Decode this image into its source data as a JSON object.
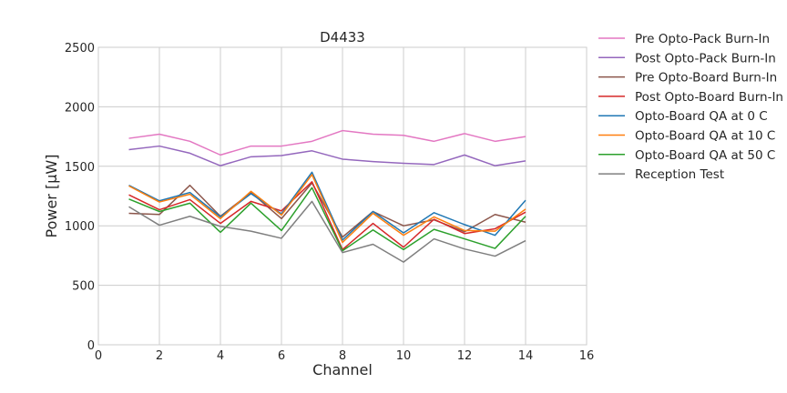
{
  "chart_data": {
    "type": "line",
    "title": "D4433",
    "xlabel": "Channel",
    "ylabel": "Power [µW]",
    "xlim": [
      0,
      16
    ],
    "ylim": [
      0,
      2500
    ],
    "xticks": [
      0,
      2,
      4,
      6,
      8,
      10,
      12,
      14,
      16
    ],
    "yticks": [
      0,
      500,
      1000,
      1500,
      2000,
      2500
    ],
    "grid": true,
    "legend_position": "outside-right",
    "x": [
      1,
      2,
      3,
      4,
      5,
      6,
      7,
      8,
      9,
      10,
      11,
      12,
      13,
      14
    ],
    "series": [
      {
        "name": "Pre Opto-Pack Burn-In",
        "color": "#e377c2",
        "values": [
          1735,
          1770,
          1710,
          1595,
          1670,
          1670,
          1710,
          1800,
          1770,
          1760,
          1710,
          1775,
          1710,
          1750
        ]
      },
      {
        "name": "Post Opto-Pack Burn-In",
        "color": "#9467bd",
        "values": [
          1640,
          1670,
          1610,
          1505,
          1580,
          1590,
          1630,
          1560,
          1540,
          1525,
          1515,
          1595,
          1505,
          1545
        ]
      },
      {
        "name": "Pre Opto-Board Burn-In",
        "color": "#8c564b",
        "values": [
          1105,
          1095,
          1340,
          1080,
          1280,
          1060,
          1360,
          905,
          1120,
          1000,
          1050,
          950,
          1095,
          1030
        ]
      },
      {
        "name": "Post Opto-Board Burn-In",
        "color": "#d62728",
        "values": [
          1260,
          1135,
          1220,
          1020,
          1205,
          1125,
          1370,
          800,
          1020,
          820,
          1055,
          935,
          975,
          1115
        ]
      },
      {
        "name": "Opto-Board QA at 0 C",
        "color": "#1f77b4",
        "values": [
          1340,
          1210,
          1280,
          1075,
          1270,
          1100,
          1450,
          880,
          1120,
          940,
          1110,
          1010,
          920,
          1215
        ]
      },
      {
        "name": "Opto-Board QA at 10 C",
        "color": "#ff7f0e",
        "values": [
          1335,
          1200,
          1265,
          1060,
          1290,
          1090,
          1430,
          860,
          1105,
          920,
          1075,
          960,
          955,
          1140
        ]
      },
      {
        "name": "Opto-Board QA at 50 C",
        "color": "#2ca02c",
        "values": [
          1225,
          1120,
          1190,
          945,
          1190,
          960,
          1320,
          790,
          965,
          800,
          970,
          890,
          810,
          1080
        ]
      },
      {
        "name": "Reception Test",
        "color": "#7f7f7f",
        "values": [
          1160,
          1005,
          1080,
          995,
          955,
          895,
          1205,
          775,
          845,
          695,
          890,
          805,
          745,
          875
        ]
      }
    ]
  }
}
